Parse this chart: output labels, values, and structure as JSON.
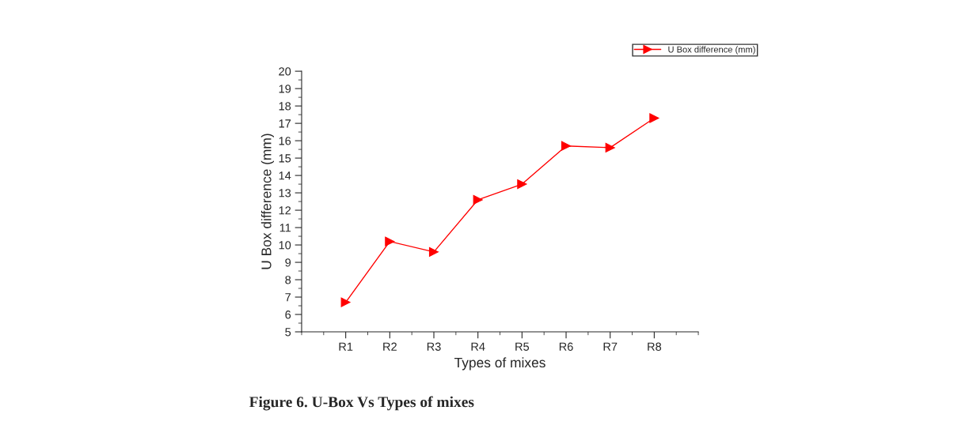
{
  "chart_data": {
    "type": "line",
    "xlabel": "Types of mixes",
    "ylabel": "U Box difference (mm)",
    "categories": [
      "R1",
      "R2",
      "R3",
      "R4",
      "R5",
      "R6",
      "R7",
      "R8"
    ],
    "series": [
      {
        "name": "U Box difference (mm)",
        "color": "#ff0000",
        "values": [
          6.7,
          10.2,
          9.6,
          12.6,
          13.5,
          15.7,
          15.6,
          17.3
        ]
      }
    ],
    "ylim": [
      5,
      20
    ],
    "yticks": [
      5,
      6,
      7,
      8,
      9,
      10,
      11,
      12,
      13,
      14,
      15,
      16,
      17,
      18,
      19,
      20
    ],
    "marker": "triangle",
    "line_style": "solid",
    "grid": false,
    "legend": "top right",
    "annotations": [
      "Figure 6. U-Box Vs Types of mixes"
    ]
  }
}
